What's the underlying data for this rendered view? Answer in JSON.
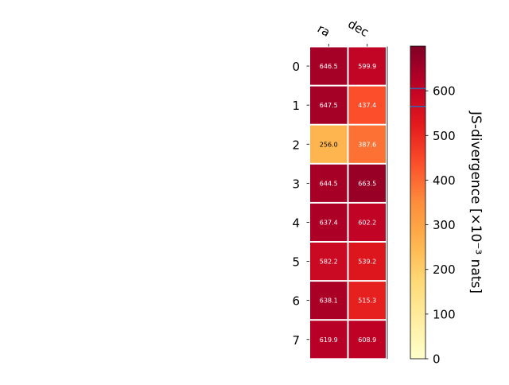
{
  "chart_data": {
    "type": "heatmap",
    "columns": [
      "ra",
      "dec"
    ],
    "rows": [
      "0",
      "1",
      "2",
      "3",
      "4",
      "5",
      "6",
      "7"
    ],
    "values": [
      [
        646.5,
        599.9
      ],
      [
        647.5,
        437.4
      ],
      [
        256.0,
        387.6
      ],
      [
        644.5,
        663.5
      ],
      [
        637.4,
        602.2
      ],
      [
        582.2,
        539.2
      ],
      [
        638.1,
        515.3
      ],
      [
        619.9,
        608.9
      ]
    ],
    "cell_labels": [
      [
        "646.5",
        "599.9"
      ],
      [
        "647.5",
        "437.4"
      ],
      [
        "256.0",
        "387.6"
      ],
      [
        "644.5",
        "663.5"
      ],
      [
        "637.4",
        "602.2"
      ],
      [
        "582.2",
        "539.2"
      ],
      [
        "638.1",
        "515.3"
      ],
      [
        "619.9",
        "608.9"
      ]
    ],
    "colorbar": {
      "label": "JS-divergence [×10⁻³ nats]",
      "range": [
        0,
        700
      ],
      "ticks": [
        0,
        100,
        200,
        300,
        400,
        500,
        600
      ],
      "tick_labels": [
        "0",
        "100",
        "200",
        "300",
        "400",
        "500",
        "600"
      ],
      "colormap": "YlOrRd",
      "marker_values": [
        605,
        565
      ],
      "marker_color": "#3b5fa8"
    },
    "grid": false
  }
}
